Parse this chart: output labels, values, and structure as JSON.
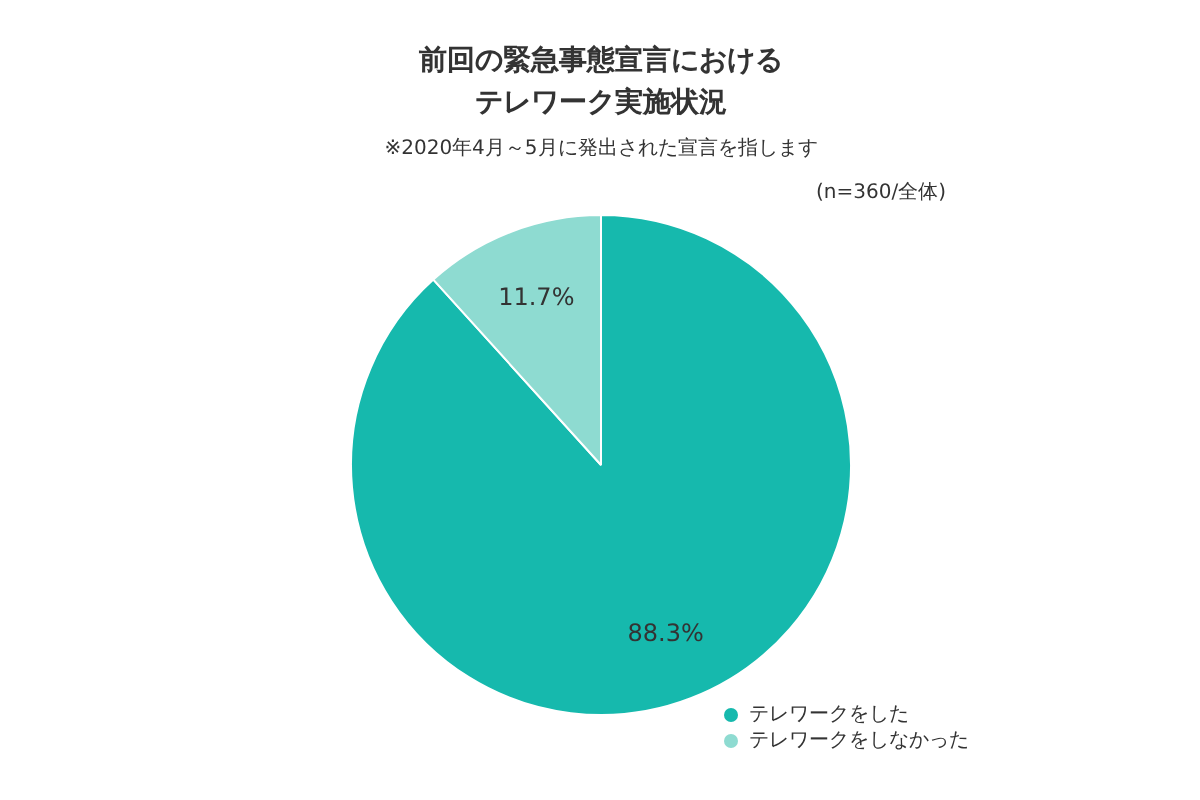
{
  "chart_data": {
    "type": "pie",
    "title": "前回の緊急事態宣言におけるテレワーク実施状況",
    "subtitle": "※2020年4月～5月に発出された宣言を指します",
    "annotations": [
      "(n=360/全体)"
    ],
    "categories": [
      "テレワークをした",
      "テレワークをしなかった"
    ],
    "values": [
      88.3,
      11.7
    ],
    "colors": [
      "#16b9ad",
      "#8edbd1"
    ],
    "value_labels": [
      "88.3%",
      "11.7%"
    ],
    "legend": "bottom right"
  }
}
